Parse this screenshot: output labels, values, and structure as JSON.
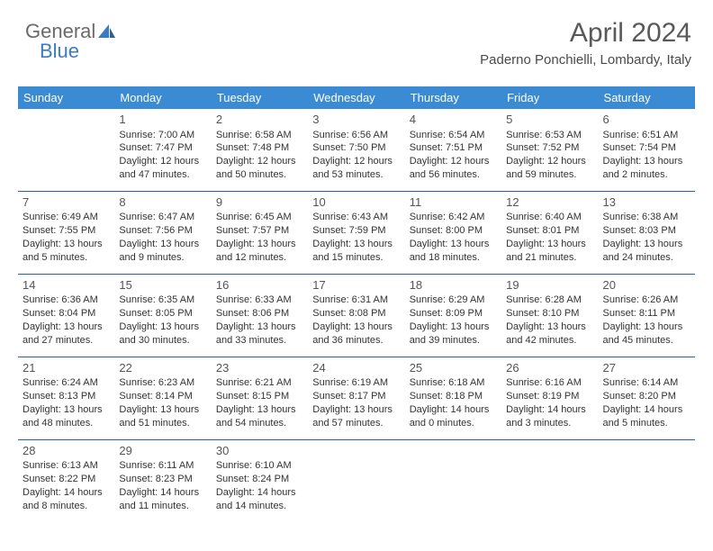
{
  "logo": {
    "text1": "General",
    "text2": "Blue"
  },
  "title": "April 2024",
  "location": "Paderno Ponchielli, Lombardy, Italy",
  "colors": {
    "header_bg": "#3b8bd4",
    "header_text": "#ffffff",
    "row_border": "#2d5f8f",
    "title_color": "#595959",
    "text_color": "#333333",
    "logo_gray": "#6a6a6a",
    "logo_blue": "#3b7bbf"
  },
  "weekdays": [
    "Sunday",
    "Monday",
    "Tuesday",
    "Wednesday",
    "Thursday",
    "Friday",
    "Saturday"
  ],
  "weeks": [
    [
      null,
      {
        "n": "1",
        "sr": "7:00 AM",
        "ss": "7:47 PM",
        "dl": "12 hours and 47 minutes."
      },
      {
        "n": "2",
        "sr": "6:58 AM",
        "ss": "7:48 PM",
        "dl": "12 hours and 50 minutes."
      },
      {
        "n": "3",
        "sr": "6:56 AM",
        "ss": "7:50 PM",
        "dl": "12 hours and 53 minutes."
      },
      {
        "n": "4",
        "sr": "6:54 AM",
        "ss": "7:51 PM",
        "dl": "12 hours and 56 minutes."
      },
      {
        "n": "5",
        "sr": "6:53 AM",
        "ss": "7:52 PM",
        "dl": "12 hours and 59 minutes."
      },
      {
        "n": "6",
        "sr": "6:51 AM",
        "ss": "7:54 PM",
        "dl": "13 hours and 2 minutes."
      }
    ],
    [
      {
        "n": "7",
        "sr": "6:49 AM",
        "ss": "7:55 PM",
        "dl": "13 hours and 5 minutes."
      },
      {
        "n": "8",
        "sr": "6:47 AM",
        "ss": "7:56 PM",
        "dl": "13 hours and 9 minutes."
      },
      {
        "n": "9",
        "sr": "6:45 AM",
        "ss": "7:57 PM",
        "dl": "13 hours and 12 minutes."
      },
      {
        "n": "10",
        "sr": "6:43 AM",
        "ss": "7:59 PM",
        "dl": "13 hours and 15 minutes."
      },
      {
        "n": "11",
        "sr": "6:42 AM",
        "ss": "8:00 PM",
        "dl": "13 hours and 18 minutes."
      },
      {
        "n": "12",
        "sr": "6:40 AM",
        "ss": "8:01 PM",
        "dl": "13 hours and 21 minutes."
      },
      {
        "n": "13",
        "sr": "6:38 AM",
        "ss": "8:03 PM",
        "dl": "13 hours and 24 minutes."
      }
    ],
    [
      {
        "n": "14",
        "sr": "6:36 AM",
        "ss": "8:04 PM",
        "dl": "13 hours and 27 minutes."
      },
      {
        "n": "15",
        "sr": "6:35 AM",
        "ss": "8:05 PM",
        "dl": "13 hours and 30 minutes."
      },
      {
        "n": "16",
        "sr": "6:33 AM",
        "ss": "8:06 PM",
        "dl": "13 hours and 33 minutes."
      },
      {
        "n": "17",
        "sr": "6:31 AM",
        "ss": "8:08 PM",
        "dl": "13 hours and 36 minutes."
      },
      {
        "n": "18",
        "sr": "6:29 AM",
        "ss": "8:09 PM",
        "dl": "13 hours and 39 minutes."
      },
      {
        "n": "19",
        "sr": "6:28 AM",
        "ss": "8:10 PM",
        "dl": "13 hours and 42 minutes."
      },
      {
        "n": "20",
        "sr": "6:26 AM",
        "ss": "8:11 PM",
        "dl": "13 hours and 45 minutes."
      }
    ],
    [
      {
        "n": "21",
        "sr": "6:24 AM",
        "ss": "8:13 PM",
        "dl": "13 hours and 48 minutes."
      },
      {
        "n": "22",
        "sr": "6:23 AM",
        "ss": "8:14 PM",
        "dl": "13 hours and 51 minutes."
      },
      {
        "n": "23",
        "sr": "6:21 AM",
        "ss": "8:15 PM",
        "dl": "13 hours and 54 minutes."
      },
      {
        "n": "24",
        "sr": "6:19 AM",
        "ss": "8:17 PM",
        "dl": "13 hours and 57 minutes."
      },
      {
        "n": "25",
        "sr": "6:18 AM",
        "ss": "8:18 PM",
        "dl": "14 hours and 0 minutes."
      },
      {
        "n": "26",
        "sr": "6:16 AM",
        "ss": "8:19 PM",
        "dl": "14 hours and 3 minutes."
      },
      {
        "n": "27",
        "sr": "6:14 AM",
        "ss": "8:20 PM",
        "dl": "14 hours and 5 minutes."
      }
    ],
    [
      {
        "n": "28",
        "sr": "6:13 AM",
        "ss": "8:22 PM",
        "dl": "14 hours and 8 minutes."
      },
      {
        "n": "29",
        "sr": "6:11 AM",
        "ss": "8:23 PM",
        "dl": "14 hours and 11 minutes."
      },
      {
        "n": "30",
        "sr": "6:10 AM",
        "ss": "8:24 PM",
        "dl": "14 hours and 14 minutes."
      },
      null,
      null,
      null,
      null
    ]
  ],
  "labels": {
    "sunrise": "Sunrise:",
    "sunset": "Sunset:",
    "daylight": "Daylight:"
  }
}
